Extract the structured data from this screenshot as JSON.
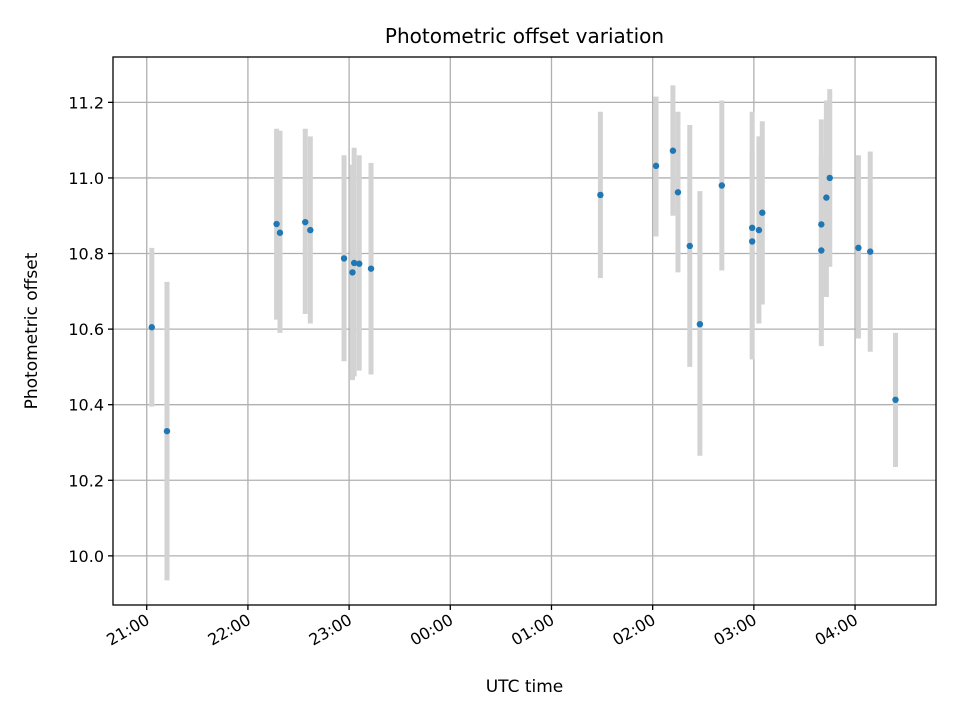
{
  "chart_data": {
    "type": "scatter",
    "title": "Photometric offset variation",
    "xlabel": "UTC time",
    "ylabel": "Photometric offset",
    "x_axis_kind": "time",
    "x_range": [
      "20:40",
      "04:48"
    ],
    "ylim": [
      9.87,
      11.32
    ],
    "grid": true,
    "x_ticks": [
      "21:00",
      "22:00",
      "23:00",
      "00:00",
      "01:00",
      "02:00",
      "03:00",
      "04:00"
    ],
    "y_ticks": [
      "10.0",
      "10.2",
      "10.4",
      "10.6",
      "10.8",
      "11.0",
      "11.2"
    ],
    "errorbar_color": "#d3d3d3",
    "marker_color": "#1f77b4",
    "points": [
      {
        "time": "21:03",
        "y": 10.605,
        "lo": 10.395,
        "hi": 10.815
      },
      {
        "time": "21:12",
        "y": 10.33,
        "lo": 9.935,
        "hi": 10.725
      },
      {
        "time": "22:17",
        "y": 10.878,
        "lo": 10.625,
        "hi": 11.13
      },
      {
        "time": "22:19",
        "y": 10.855,
        "lo": 10.59,
        "hi": 11.125
      },
      {
        "time": "22:34",
        "y": 10.883,
        "lo": 10.64,
        "hi": 11.13
      },
      {
        "time": "22:37",
        "y": 10.862,
        "lo": 10.615,
        "hi": 11.11
      },
      {
        "time": "22:57",
        "y": 10.787,
        "lo": 10.515,
        "hi": 11.06
      },
      {
        "time": "23:02",
        "y": 10.75,
        "lo": 10.465,
        "hi": 11.035
      },
      {
        "time": "23:03",
        "y": 10.775,
        "lo": 10.475,
        "hi": 11.08
      },
      {
        "time": "23:06",
        "y": 10.773,
        "lo": 10.49,
        "hi": 11.06
      },
      {
        "time": "23:13",
        "y": 10.76,
        "lo": 10.48,
        "hi": 11.04
      },
      {
        "time": "01:29",
        "y": 10.955,
        "lo": 10.735,
        "hi": 11.175
      },
      {
        "time": "02:02",
        "y": 11.032,
        "lo": 10.845,
        "hi": 11.215
      },
      {
        "time": "02:12",
        "y": 11.072,
        "lo": 10.9,
        "hi": 11.245
      },
      {
        "time": "02:15",
        "y": 10.962,
        "lo": 10.75,
        "hi": 11.175
      },
      {
        "time": "02:22",
        "y": 10.82,
        "lo": 10.5,
        "hi": 11.14
      },
      {
        "time": "02:28",
        "y": 10.613,
        "lo": 10.265,
        "hi": 10.965
      },
      {
        "time": "02:41",
        "y": 10.98,
        "lo": 10.755,
        "hi": 11.205
      },
      {
        "time": "02:59",
        "y": 10.832,
        "lo": 10.52,
        "hi": 11.175
      },
      {
        "time": "02:59",
        "y": 10.868,
        "lo": 10.62,
        "hi": 11.07
      },
      {
        "time": "03:03",
        "y": 10.862,
        "lo": 10.615,
        "hi": 11.11
      },
      {
        "time": "03:05",
        "y": 10.908,
        "lo": 10.665,
        "hi": 11.15
      },
      {
        "time": "03:40",
        "y": 10.877,
        "lo": 10.595,
        "hi": 11.155
      },
      {
        "time": "03:40",
        "y": 10.808,
        "lo": 10.555,
        "hi": 11.06
      },
      {
        "time": "03:43",
        "y": 10.948,
        "lo": 10.685,
        "hi": 11.205
      },
      {
        "time": "03:45",
        "y": 11.0,
        "lo": 10.765,
        "hi": 11.235
      },
      {
        "time": "04:02",
        "y": 10.815,
        "lo": 10.575,
        "hi": 11.06
      },
      {
        "time": "04:09",
        "y": 10.805,
        "lo": 10.54,
        "hi": 11.07
      },
      {
        "time": "04:24",
        "y": 10.413,
        "lo": 10.235,
        "hi": 10.59
      }
    ]
  }
}
